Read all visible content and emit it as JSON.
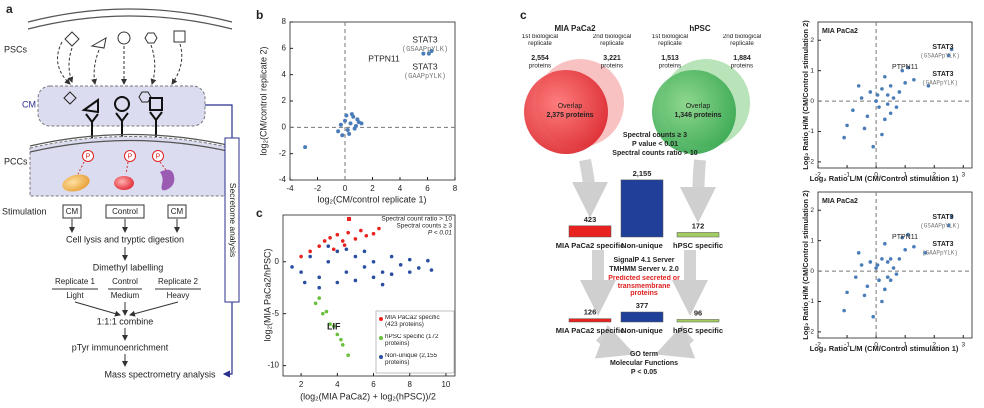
{
  "diagram": {
    "panel_labels": [
      "a",
      "b",
      "c",
      "c"
    ],
    "cells": {
      "pscs": "PSCs",
      "cm": "CM",
      "pccs": "PCCs"
    },
    "phospho": [
      "P",
      "P",
      "P"
    ],
    "stimulation": {
      "label": "Stimulation",
      "conditions": [
        "CM",
        "Control",
        "CM"
      ]
    },
    "steps": [
      "Cell lysis and tryptic digestion",
      "Dimethyl labelling",
      "1:1:1 combine",
      "pTyr immunoenrichment",
      "Mass spectrometry analysis"
    ],
    "replicates": [
      {
        "name": "Replicate 1",
        "label": "Light"
      },
      {
        "name": "Control",
        "label": "Medium"
      },
      {
        "name": "Replicate 2",
        "label": "Heavy"
      }
    ],
    "secretome": "Secretome analysis",
    "venns": [
      {
        "title": "MIA PaCa2",
        "rep1": {
          "label": "1st biological replicate",
          "count": "2,554",
          "unit": "proteins"
        },
        "rep2": {
          "label": "2nd biological replicate",
          "count": "3,221",
          "unit": "proteins"
        },
        "overlap": {
          "label": "Overlap",
          "count": "2,375 proteins"
        }
      },
      {
        "title": "hPSC",
        "rep1": {
          "label": "1st biological replicate",
          "count": "1,513",
          "unit": "proteins"
        },
        "rep2": {
          "label": "2nd biological replicate",
          "count": "1,884",
          "unit": "proteins"
        },
        "overlap": {
          "label": "Overlap",
          "count": "1,346 proteins"
        }
      }
    ],
    "filter": [
      "Spectral counts ≥ 3",
      "P value < 0.01",
      "Spectral counts ratio > 10"
    ],
    "prediction": {
      "tools": [
        "SignalP 4.1 Server",
        "TMHMM Server v. 2.0"
      ],
      "result": "Predicted secreted or transmembrane proteins"
    },
    "go": [
      "GO term",
      "Molecular Functions",
      "P < 0.05"
    ]
  },
  "chart_data": [
    {
      "type": "scatter",
      "xlabel": "log₂(CM/control replicate 1)",
      "ylabel": "log₂(CM/control replicate 2)",
      "xlim": [
        -4,
        8
      ],
      "ylim": [
        -4,
        8
      ],
      "xticks": [
        -4,
        -2,
        0,
        2,
        4,
        6,
        8
      ],
      "yticks": [
        -4,
        -2,
        0,
        2,
        4,
        6,
        8
      ],
      "zero_lines": true,
      "series": [
        {
          "color": "#4a7db8",
          "x": [
            -2.9,
            -0.5,
            -0.3,
            0,
            0.2,
            0.4,
            0.6,
            0.8,
            1,
            0.3,
            -0.2,
            0.5,
            0.9,
            0.1,
            0.7,
            1.2,
            5.7,
            6.1,
            6.3
          ],
          "y": [
            -1.5,
            -0.3,
            0.2,
            0.5,
            -0.2,
            0.3,
            0.8,
            0.1,
            0.4,
            -0.5,
            -0.6,
            1,
            0.6,
            0.9,
            -0.1,
            0.3,
            5.6,
            5.6,
            5.8
          ]
        }
      ],
      "annotations": [
        "STAT3",
        "(GSAAPpYLK)",
        "PTPN11",
        "STAT3",
        "(GAAPpYLK)"
      ]
    },
    {
      "type": "scatter",
      "xlabel": "(log₂(MIA PaCa2) + log₂(hPSC))/2",
      "ylabel": "log₂(MIA PaCa2/hPSC)",
      "xlim": [
        1,
        10.5
      ],
      "ylim": [
        -11,
        4.5
      ],
      "xticks": [
        2,
        4,
        6,
        8,
        10
      ],
      "yticks": [
        -10,
        -5,
        0
      ],
      "series": [
        {
          "name": "Non-unique (2,155 proteins)",
          "color": "#2a4fa0",
          "x": [
            1.5,
            2,
            2.5,
            3,
            3.5,
            4,
            4.5,
            5,
            5.5,
            6,
            6.5,
            7,
            7.5,
            8,
            8.5,
            9,
            2.2,
            3,
            4,
            5,
            6,
            7,
            8,
            9.2,
            3.5,
            4.5,
            5.5,
            6.5
          ],
          "y": [
            -0.5,
            -1,
            0.5,
            -1.5,
            0,
            1,
            -1,
            0.5,
            -0.5,
            0,
            -1,
            0.5,
            -0.3,
            0.2,
            -0.6,
            0.1,
            -2,
            -2.5,
            -2,
            -1.8,
            -1.5,
            -1.2,
            -1,
            -0.8,
            1.5,
            1.2,
            1,
            -2.2
          ]
        },
        {
          "name": "MIA PaCa2 specific (423 proteins)",
          "color": "#e8231f",
          "x": [
            2,
            2.5,
            3,
            3.3,
            3.6,
            4,
            4.3,
            4.6,
            5,
            5.3,
            5.6,
            6,
            3.8,
            4.4,
            6.3
          ],
          "y": [
            0.5,
            1,
            1.5,
            2,
            2.3,
            2.6,
            2,
            2.8,
            2.2,
            3,
            2.5,
            2.7,
            1.2,
            1.6,
            3.2
          ]
        },
        {
          "name": "hPSC specific (172 proteins)",
          "color": "#6abf3c",
          "x": [
            2.8,
            3.2,
            3.6,
            4,
            4.3,
            4.6,
            3,
            3.4,
            3.8,
            4.2
          ],
          "y": [
            -4,
            -5,
            -6,
            -7,
            -8,
            -9,
            -3.5,
            -4.8,
            -6.2,
            -7.5
          ]
        }
      ],
      "annotations": [
        "Spectral count ratio > 10",
        "Spectral counts ≥ 3",
        "P < 0.01",
        "LIF"
      ]
    },
    {
      "type": "bar",
      "categories": [
        "MIA PaCa2 specific",
        "Non-unique",
        "hPSC specific"
      ],
      "values": [
        423,
        2155,
        172
      ],
      "value_labels": [
        "423",
        "2,155",
        "172"
      ],
      "colors": [
        "#e8231f",
        "#1f3f99",
        "#a3cd63"
      ]
    },
    {
      "type": "bar",
      "categories": [
        "MIA PaCa2 specific",
        "Non-unique",
        "hPSC specific"
      ],
      "values": [
        126,
        377,
        96
      ],
      "colors": [
        "#e8231f",
        "#1f3f99",
        "#a3cd63"
      ]
    },
    {
      "type": "scatter",
      "title": "MIA PaCa2",
      "xlabel": "Log₂ Ratio L/M (CM/Control stimulation 1)",
      "ylabel": "Log₂ Ratio H/M (CM/Control stimulation 2)",
      "xlim": [
        -2,
        3.3
      ],
      "ylim": [
        -2.2,
        2.6
      ],
      "xticks": [
        -2,
        -1,
        0,
        1,
        2,
        3
      ],
      "yticks": [
        -2,
        -1,
        0,
        1,
        2
      ],
      "zero_lines": true,
      "series": [
        {
          "color": "#4a7db8",
          "x": [
            -0.8,
            -0.5,
            -0.3,
            -0.2,
            0,
            0.1,
            0.2,
            0.3,
            0.4,
            0.5,
            0.6,
            0.8,
            1,
            -0.4,
            0.2,
            0.5,
            -0.6,
            -1,
            0.3,
            0.7,
            1.3,
            1.8,
            0.9,
            -0.1,
            0.05,
            0.4,
            2.6,
            2.5,
            1.1,
            -1.1
          ],
          "y": [
            -0.3,
            0.1,
            -0.5,
            0.3,
            0,
            -0.2,
            0.4,
            -0.6,
            0.2,
            0.5,
            0.1,
            0.3,
            0.6,
            -0.9,
            -1.1,
            -0.4,
            0.5,
            -0.8,
            0.8,
            -0.2,
            0.7,
            0.5,
            1,
            -1.5,
            0.2,
            -0.1,
            1.7,
            1.5,
            1.1,
            -1.2
          ]
        }
      ],
      "annotations": [
        "STAT3",
        "(GSAAPpYLK)",
        "PTPN11",
        "STAT3",
        "(GAAPpYLK)"
      ]
    },
    {
      "type": "scatter",
      "title": "MIA PaCa2",
      "xlabel": "Log₂ Ratio L/M (CM/Control stimulation 1)",
      "ylabel": "Log₂ Ratio H/M (CM/Control stimulation 2)",
      "xlim": [
        -2,
        3.3
      ],
      "ylim": [
        -2.2,
        2.6
      ],
      "xticks": [
        -2,
        -1,
        0,
        1,
        2,
        3
      ],
      "yticks": [
        -2,
        -1,
        0,
        1,
        2
      ],
      "zero_lines": true,
      "series": [
        {
          "color": "#4a7db8",
          "x": [
            -0.7,
            -0.5,
            -0.3,
            -0.2,
            0,
            0.1,
            0.2,
            0.3,
            0.4,
            0.5,
            0.6,
            0.8,
            1,
            -0.4,
            0.2,
            0.5,
            -0.6,
            -1,
            0.3,
            0.7,
            1.3,
            1.7,
            0.9,
            -0.1,
            0.05,
            0.4,
            2.6,
            2.5,
            1.1,
            -1.1
          ],
          "y": [
            -0.2,
            0.2,
            -0.5,
            0.3,
            0.1,
            -0.3,
            0.4,
            -0.6,
            0.3,
            0.4,
            0.1,
            0.4,
            0.7,
            -0.8,
            -1.0,
            -0.3,
            0.6,
            -0.7,
            0.9,
            -0.1,
            0.8,
            0.6,
            1.1,
            -1.5,
            0.2,
            -0.2,
            1.8,
            1.5,
            1.2,
            -1.3
          ]
        }
      ],
      "annotations": [
        "STAT3",
        "(GSAAPpYLK)",
        "PTPN11",
        "STAT3",
        "(GAAPpYLK)"
      ]
    }
  ]
}
